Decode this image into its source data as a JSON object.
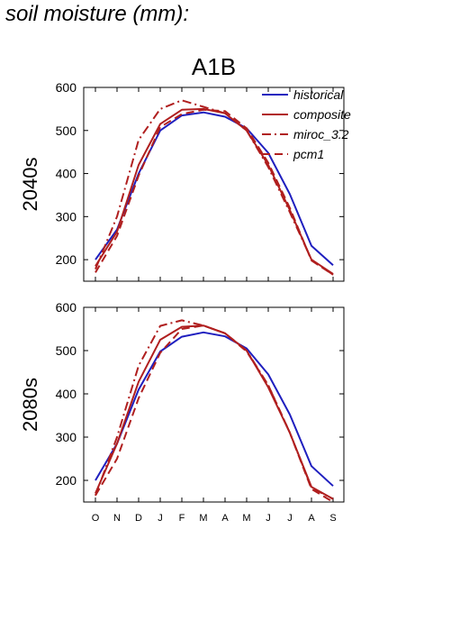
{
  "page_title": "soil moisture (mm):",
  "chart_data": [
    {
      "type": "line",
      "title": "A1B",
      "ylabel": "2040s",
      "ylim": [
        150,
        600
      ],
      "yticks": [
        200,
        300,
        400,
        500,
        600
      ],
      "categories": [
        "O",
        "N",
        "D",
        "J",
        "F",
        "M",
        "A",
        "M",
        "J",
        "J",
        "A",
        "S"
      ],
      "legend_position": "top-right",
      "series": [
        {
          "name": "historical",
          "color": "#1f1fbf",
          "style": "solid",
          "values": [
            200,
            270,
            400,
            500,
            535,
            542,
            532,
            505,
            448,
            352,
            232,
            187
          ]
        },
        {
          "name": "composite",
          "color": "#b01f1f",
          "style": "solid",
          "values": [
            185,
            265,
            420,
            515,
            548,
            550,
            540,
            500,
            420,
            315,
            200,
            167
          ]
        },
        {
          "name": "miroc_3.2",
          "color": "#b01f1f",
          "style": "dashdot",
          "values": [
            178,
            300,
            478,
            550,
            570,
            555,
            540,
            500,
            415,
            310,
            200,
            165
          ]
        },
        {
          "name": "pcm1",
          "color": "#b01f1f",
          "style": "dashed",
          "values": [
            170,
            255,
            395,
            508,
            538,
            548,
            545,
            505,
            425,
            320,
            198,
            165
          ]
        }
      ]
    },
    {
      "type": "line",
      "title": "",
      "ylabel": "2080s",
      "ylim": [
        150,
        600
      ],
      "yticks": [
        200,
        300,
        400,
        500,
        600
      ],
      "categories": [
        "O",
        "N",
        "D",
        "J",
        "F",
        "M",
        "A",
        "M",
        "J",
        "J",
        "A",
        "S"
      ],
      "series": [
        {
          "name": "historical",
          "color": "#1f1fbf",
          "style": "solid",
          "values": [
            200,
            285,
            410,
            498,
            532,
            542,
            533,
            505,
            445,
            352,
            233,
            187
          ]
        },
        {
          "name": "composite",
          "color": "#b01f1f",
          "style": "solid",
          "values": [
            170,
            285,
            428,
            525,
            555,
            558,
            540,
            500,
            415,
            310,
            185,
            157
          ]
        },
        {
          "name": "miroc_3.2",
          "color": "#b01f1f",
          "style": "dashdot",
          "values": [
            165,
            300,
            465,
            557,
            570,
            558,
            540,
            500,
            420,
            310,
            183,
            157
          ]
        },
        {
          "name": "pcm1",
          "color": "#b01f1f",
          "style": "dashed",
          "values": [
            165,
            250,
            390,
            495,
            550,
            558,
            540,
            498,
            420,
            310,
            180,
            150
          ]
        }
      ]
    }
  ]
}
